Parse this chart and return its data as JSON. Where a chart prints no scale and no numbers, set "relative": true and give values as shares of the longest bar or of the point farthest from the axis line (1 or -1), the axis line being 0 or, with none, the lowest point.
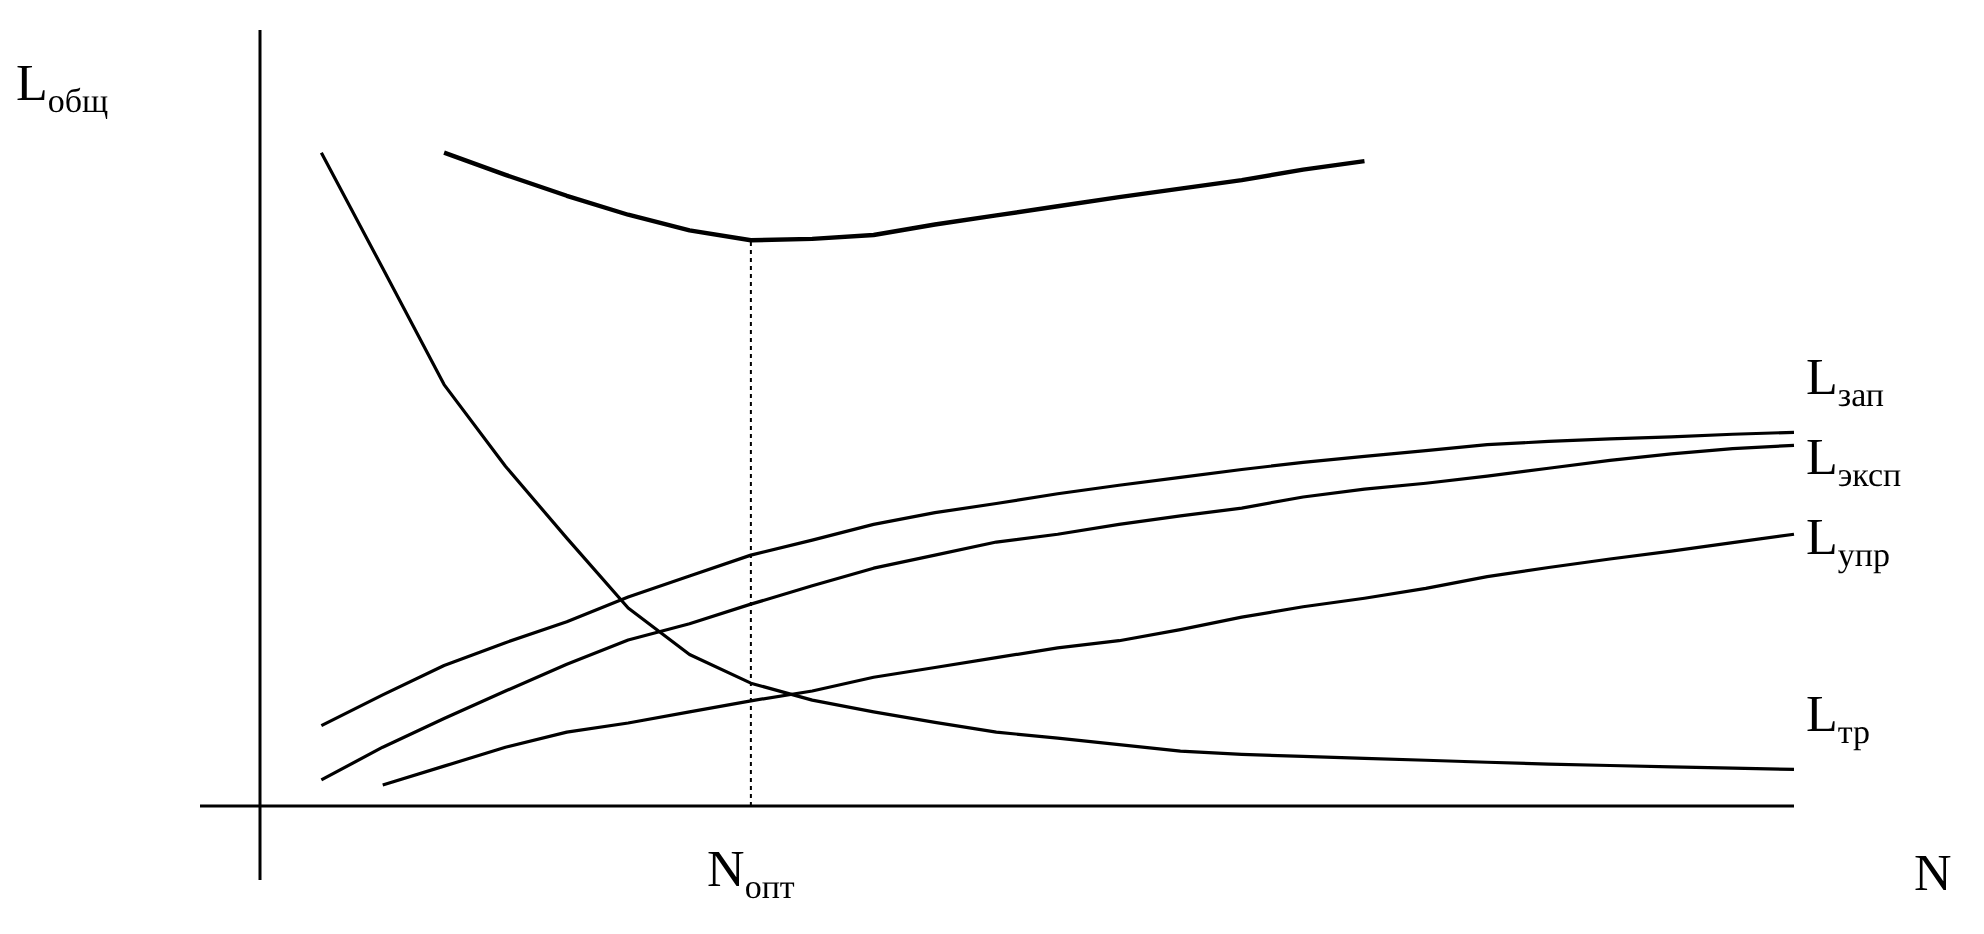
{
  "chart_data": {
    "type": "line",
    "relative": true,
    "xlabel": "N",
    "ylabel": "L$_{общ}$",
    "legend": false,
    "marker": "none",
    "categories": [
      null,
      null,
      null,
      null,
      null,
      null,
      null,
      null,
      null,
      null,
      null,
      null,
      null,
      null,
      null,
      null,
      null,
      null,
      null,
      null,
      null,
      null,
      null,
      null,
      null,
      null
    ],
    "series": [
      {
        "color": "#000000",
        "values": [
          null,
          null,
          null,
          1.0,
          0.966,
          0.934,
          0.905,
          0.881,
          0.866,
          0.868,
          0.874,
          0.89,
          0.904,
          0.918,
          0.932,
          0.945,
          0.958,
          0.974,
          0.987,
          null,
          null,
          null,
          null,
          null,
          null,
          null
        ]
      },
      {
        "name": "L$_{зап}$",
        "color": "#000000",
        "values": [
          null,
          0.123,
          0.17,
          0.215,
          0.25,
          0.282,
          0.32,
          0.352,
          0.384,
          0.407,
          0.431,
          0.449,
          0.463,
          0.478,
          0.491,
          0.503,
          0.515,
          0.526,
          0.535,
          0.544,
          0.553,
          0.558,
          0.562,
          0.565,
          0.569,
          0.572
        ]
      },
      {
        "name": "L$_{эксп}$",
        "color": "#000000",
        "values": [
          null,
          0.04,
          0.09,
          0.134,
          0.176,
          0.217,
          0.254,
          0.279,
          0.309,
          0.337,
          0.364,
          0.384,
          0.404,
          0.416,
          0.431,
          0.444,
          0.456,
          0.473,
          0.485,
          0.494,
          0.505,
          0.517,
          0.529,
          0.539,
          0.547,
          0.552
        ]
      },
      {
        "name": "L$_{упр}$",
        "color": "#000000",
        "values": [
          null,
          null,
          0.032,
          0.061,
          0.09,
          0.113,
          0.127,
          0.144,
          0.161,
          0.176,
          0.197,
          0.212,
          0.227,
          0.242,
          0.253,
          0.27,
          0.289,
          0.305,
          0.318,
          0.333,
          0.351,
          0.365,
          0.378,
          0.39,
          0.403,
          0.416
        ]
      },
      {
        "name": "L$_{тр}$",
        "color": "#000000",
        "values": [
          null,
          1.0,
          0.823,
          0.645,
          0.52,
          0.41,
          0.303,
          0.232,
          0.188,
          0.162,
          0.144,
          0.128,
          0.113,
          0.104,
          0.094,
          0.084,
          0.079,
          0.076,
          0.073,
          0.07,
          0.067,
          0.064,
          0.062,
          0.06,
          0.058,
          0.056
        ]
      }
    ],
    "ref_lines": [
      {
        "axis": "x",
        "label": "N$_{опт}$",
        "line_style": "dotted",
        "color": "#000000"
      }
    ]
  }
}
